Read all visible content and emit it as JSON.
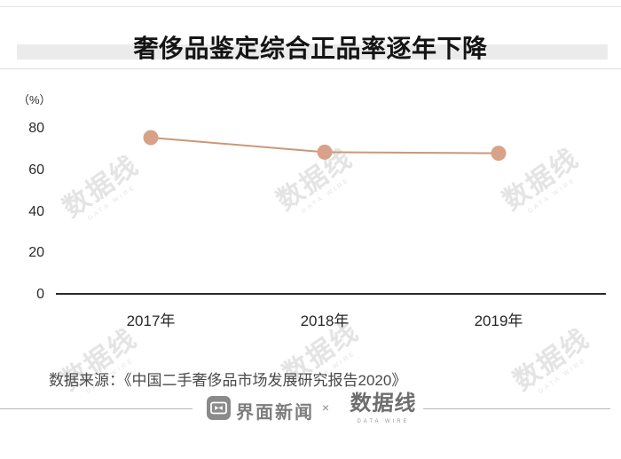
{
  "title": "奢侈品鉴定综合正品率逐年下降",
  "chart_data": {
    "type": "line",
    "title": "奢侈品鉴定综合正品率逐年下降",
    "categories": [
      "2017年",
      "2018年",
      "2019年"
    ],
    "values": [
      75.5,
      68.5,
      68
    ],
    "ylabel": "（%）",
    "xlabel": "",
    "yticks": [
      80,
      60,
      40,
      20,
      0
    ],
    "ytick_labels": [
      "80",
      "60",
      "40",
      "20",
      "0"
    ],
    "ylim": [
      0,
      86
    ],
    "grid": false,
    "legend": "none",
    "line_color": "#cd9778",
    "marker_color": "#d9a288",
    "axis_color": "#2a2a2a"
  },
  "source": "数据来源：《中国二手奢侈品市场发展研究报告2020》",
  "footer": {
    "jiemian_label": "界面新闻",
    "separator": "×",
    "datawire_label": "数据线",
    "datawire_sub": "DATA WIRE"
  },
  "watermark": {
    "text": "数据线",
    "sub": "DATA WIRE"
  }
}
